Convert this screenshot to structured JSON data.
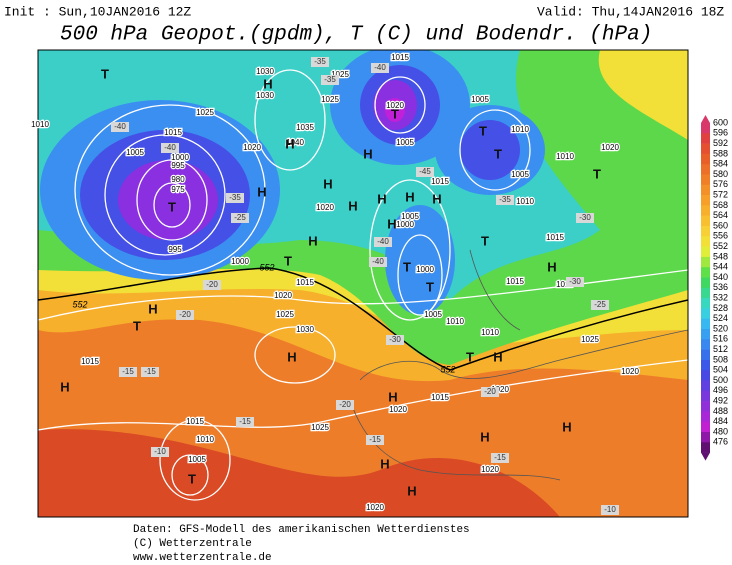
{
  "header": {
    "init": "Init : Sun,10JAN2016 12Z",
    "valid": "Valid: Thu,14JAN2016 18Z",
    "title": "500 hPa Geopot.(gpdm), T (C) und Bodendr. (hPa)"
  },
  "colorbar": {
    "labels": [
      600,
      596,
      592,
      588,
      584,
      580,
      576,
      572,
      568,
      564,
      560,
      556,
      552,
      548,
      544,
      540,
      536,
      532,
      528,
      524,
      520,
      516,
      512,
      508,
      504,
      500,
      496,
      492,
      488,
      484,
      480,
      476
    ]
  },
  "map": {
    "labels": [
      "1010",
      "1015",
      "1005",
      "1000",
      "995",
      "980",
      "975",
      "995",
      "1025",
      "1030",
      "1030",
      "1035",
      "1040",
      "1020",
      "1025",
      "1025",
      "1015",
      "1020",
      "1005",
      "1015",
      "1005",
      "1010",
      "1005",
      "1010",
      "1020",
      "1020",
      "1005",
      "1000",
      "1010",
      "1015",
      "1000",
      "1005",
      "1010",
      "1010",
      "1015",
      "1010",
      "1025",
      "1020",
      "1000",
      "1015",
      "1020",
      "1025",
      "1030",
      "1015",
      "1015",
      "1010",
      "1005",
      "1025",
      "1020",
      "1015",
      "1020",
      "1020",
      "1020",
      "-40",
      "-40",
      "-35",
      "-30",
      "-25",
      "-20",
      "-20",
      "-15",
      "-15",
      "-15",
      "-10",
      "-15",
      "-20",
      "-45",
      "-40",
      "-40",
      "-35",
      "-30",
      "-25",
      "-30",
      "-20",
      "-15",
      "-10",
      "-35",
      "-40",
      "-35",
      "T",
      "T",
      "H",
      "H",
      "H",
      "H",
      "H",
      "T",
      "T",
      "T",
      "H",
      "H",
      "H",
      "H",
      "H",
      "T",
      "H",
      "T",
      "T",
      "T",
      "T",
      "H",
      "T",
      "H",
      "H",
      "T",
      "H",
      "H",
      "H",
      "H",
      "H",
      "H",
      "H",
      "T",
      "552",
      "552",
      "552"
    ]
  },
  "footer": {
    "lines": [
      "Daten: GFS-Modell des amerikanischen Wetterdienstes",
      "(C) Wetterzentrale",
      "www.wetterzentrale.de"
    ]
  }
}
